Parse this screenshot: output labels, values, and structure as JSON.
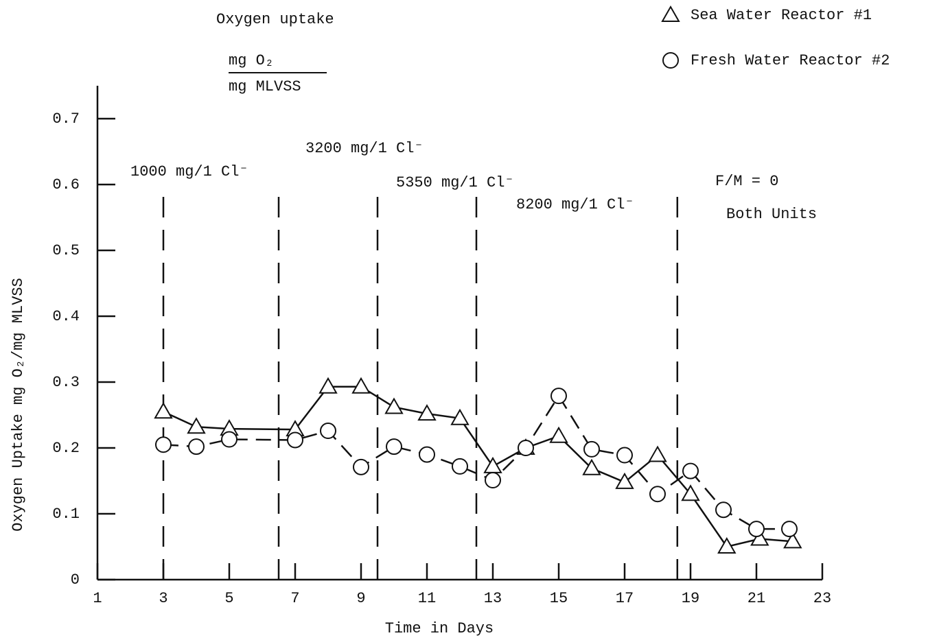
{
  "chart_data": {
    "type": "line",
    "title": "Oxygen uptake",
    "title_fraction": {
      "numerator": "mg O₂",
      "denominator": "mg MLVSS"
    },
    "xlabel": "Time in Days",
    "ylabel": "Oxygen Uptake  mg O₂/mg  MLVSS",
    "xlim": [
      1,
      23
    ],
    "xticks": [
      1,
      3,
      5,
      7,
      9,
      11,
      13,
      15,
      17,
      19,
      21,
      23
    ],
    "ylim": [
      0,
      0.75
    ],
    "yticks": [
      0,
      0.1,
      0.2,
      0.3,
      0.4,
      0.5,
      0.6,
      0.7
    ],
    "grid": false,
    "legend": "top-right",
    "dividers": [
      3,
      6.5,
      9.5,
      12.5,
      18.6
    ],
    "annotations": [
      "1000 mg/1 Cl⁻",
      "3200 mg/1 Cl⁻",
      "5350 mg/1 Cl⁻",
      "8200 mg/1 Cl⁻",
      "F/M = 0",
      "Both Units"
    ],
    "series": [
      {
        "name": "Sea Water Reactor #1",
        "marker": "triangle",
        "color": "#111111",
        "dash": false,
        "x": [
          3,
          4,
          5,
          7,
          8,
          9,
          10,
          11,
          12,
          13,
          14,
          15,
          16,
          17,
          18,
          19,
          20.1,
          21.1,
          22.1
        ],
        "values": [
          0.255,
          0.232,
          0.229,
          0.228,
          0.293,
          0.293,
          0.262,
          0.252,
          0.245,
          0.172,
          0.2,
          0.218,
          0.169,
          0.148,
          0.189,
          0.13,
          0.05,
          0.062,
          0.058
        ]
      },
      {
        "name": "Fresh Water Reactor #2",
        "marker": "circle",
        "color": "#111111",
        "dash": true,
        "x": [
          3,
          4,
          5,
          7,
          8,
          9,
          10,
          11,
          12,
          13,
          14,
          15,
          16,
          17,
          18,
          19,
          20,
          21,
          22
        ],
        "values": [
          0.205,
          0.202,
          0.213,
          0.212,
          0.226,
          0.171,
          0.202,
          0.19,
          0.172,
          0.151,
          0.2,
          0.279,
          0.198,
          0.189,
          0.13,
          0.165,
          0.106,
          0.077,
          0.077
        ]
      }
    ]
  }
}
